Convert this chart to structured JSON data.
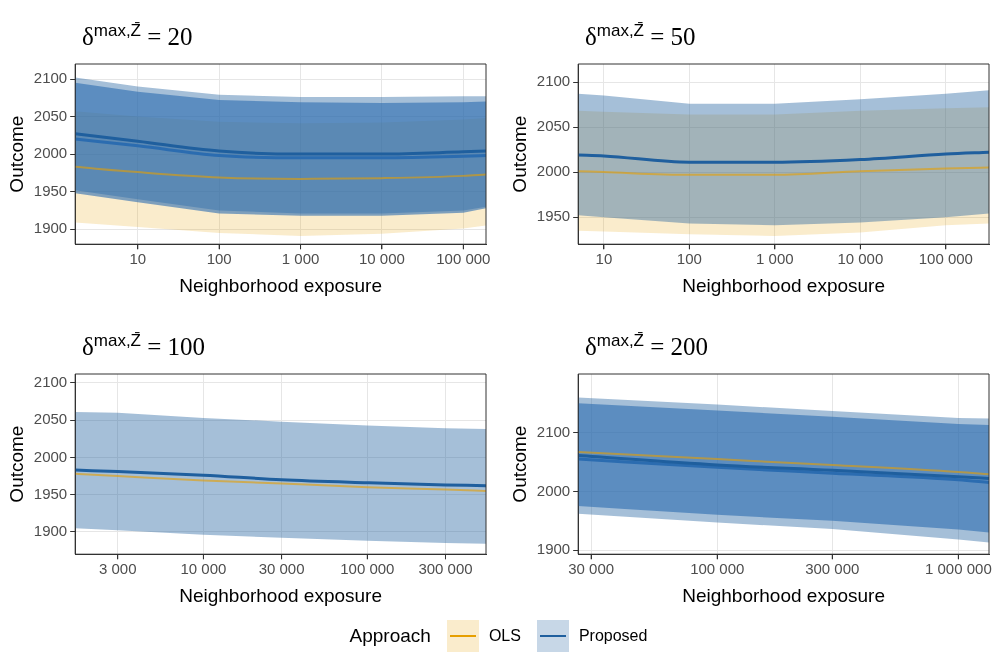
{
  "chart_data": [
    {
      "type": "line",
      "title": "δ$^{max,Z̄}$ = 20",
      "xlabel": "Neighborhood exposure",
      "ylabel": "Outcome",
      "log": "x",
      "grid": true,
      "legend": "bottom",
      "legend_title": "Approach",
      "xlim": [
        1.7,
        190000
      ],
      "xticks": [
        {
          "value": 10,
          "label": "10"
        },
        {
          "value": 100,
          "label": "100"
        },
        {
          "value": 1000,
          "label": "1 000"
        },
        {
          "value": 10000,
          "label": "10 000"
        },
        {
          "value": 100000,
          "label": "100 000"
        }
      ],
      "ylim": [
        1880,
        2120
      ],
      "yticks": [
        1900,
        1950,
        2000,
        2050,
        2100
      ],
      "x": [
        1.7,
        10,
        100,
        1000,
        10000,
        100000,
        190000
      ],
      "series": [
        {
          "name": "OLS",
          "color": "#e69f00",
          "values": [
            1983,
            1976,
            1969,
            1967,
            1968,
            1971,
            1973
          ],
          "lower": [
            1909,
            1903,
            1895,
            1891,
            1894,
            1901,
            1905
          ],
          "upper": [
            2057,
            2050,
            2043,
            2041,
            2042,
            2046,
            2048
          ]
        },
        {
          "name": "Proposed",
          "color": "#1f5f9e",
          "values": [
            2027,
            2017,
            2004,
            2000,
            2000,
            2003,
            2004
          ],
          "lower": [
            1952,
            1940,
            1925,
            1921,
            1921,
            1925,
            1930
          ],
          "upper": [
            2102,
            2090,
            2079,
            2076,
            2076,
            2077,
            2077
          ]
        },
        {
          "color": "#2b6cb0",
          "values": [
            2020,
            2011,
            1998,
            1995,
            1995,
            1997,
            1998
          ],
          "lower": [
            1948,
            1936,
            1921,
            1918,
            1918,
            1922,
            1928
          ],
          "upper": [
            2095,
            2083,
            2072,
            2069,
            2068,
            2069,
            2070
          ]
        }
      ]
    },
    {
      "type": "line",
      "title": "δ$^{max,Z̄}$ = 50",
      "xlabel": "Neighborhood exposure",
      "ylabel": "Outcome",
      "log": "x",
      "grid": true,
      "xlim": [
        5,
        320000
      ],
      "xticks": [
        {
          "value": 10,
          "label": "10"
        },
        {
          "value": 100,
          "label": "100"
        },
        {
          "value": 1000,
          "label": "1 000"
        },
        {
          "value": 10000,
          "label": "10 000"
        },
        {
          "value": 100000,
          "label": "100 000"
        }
      ],
      "ylim": [
        1920,
        2120
      ],
      "yticks": [
        1950,
        2000,
        2050,
        2100
      ],
      "x": [
        5,
        10,
        100,
        1000,
        10000,
        100000,
        320000
      ],
      "series": [
        {
          "name": "OLS",
          "color": "#e69f00",
          "values": [
            2001,
            2000,
            1997,
            1997,
            2001,
            2004,
            2005
          ],
          "lower": [
            1935,
            1934,
            1931,
            1929,
            1933,
            1941,
            1943
          ],
          "upper": [
            2068,
            2067,
            2064,
            2064,
            2068,
            2071,
            2072
          ]
        },
        {
          "name": "Proposed",
          "color": "#1f5f9e",
          "values": [
            2019,
            2018,
            2011,
            2011,
            2014,
            2020,
            2022
          ],
          "lower": [
            1952,
            1950,
            1943,
            1941,
            1944,
            1950,
            1954
          ],
          "upper": [
            2087,
            2085,
            2076,
            2076,
            2081,
            2087,
            2091
          ]
        }
      ]
    },
    {
      "type": "line",
      "title": "δ$^{max,Z̄}$ = 100",
      "xlabel": "Neighborhood exposure",
      "ylabel": "Outcome",
      "log": "x",
      "grid": true,
      "xlim": [
        1650,
        530000
      ],
      "xticks": [
        {
          "value": 3000,
          "label": "3 000"
        },
        {
          "value": 10000,
          "label": "10 000"
        },
        {
          "value": 30000,
          "label": "30 000"
        },
        {
          "value": 100000,
          "label": "100 000"
        },
        {
          "value": 300000,
          "label": "300 000"
        }
      ],
      "ylim": [
        1870,
        2112
      ],
      "yticks": [
        1900,
        1950,
        2000,
        2050,
        2100
      ],
      "x": [
        1650,
        3000,
        10000,
        30000,
        100000,
        300000,
        530000
      ],
      "series": [
        {
          "name": "OLS",
          "color": "#e69f00",
          "values": [
            1978,
            1975,
            1969,
            1965,
            1960,
            1957,
            1955
          ]
        },
        {
          "name": "Proposed",
          "color": "#1f5f9e",
          "values": [
            1983,
            1981,
            1976,
            1970,
            1966,
            1963,
            1962
          ],
          "lower": [
            1905,
            1902,
            1896,
            1892,
            1888,
            1885,
            1884
          ],
          "upper": [
            2061,
            2060,
            2053,
            2048,
            2043,
            2039,
            2038
          ]
        }
      ]
    },
    {
      "type": "line",
      "title": "δ$^{max,Z̄}$ = 200",
      "xlabel": "Neighborhood exposure",
      "ylabel": "Outcome",
      "log": "x",
      "grid": true,
      "xlim": [
        26500,
        1340000
      ],
      "xticks": [
        {
          "value": 30000,
          "label": "30 000"
        },
        {
          "value": 100000,
          "label": "100 000"
        },
        {
          "value": 300000,
          "label": "300 000"
        },
        {
          "value": 1000000,
          "label": "1 000 000"
        }
      ],
      "ylim": [
        1893,
        2200
      ],
      "yticks": [
        1900,
        2000,
        2100
      ],
      "x": [
        26500,
        100000,
        300000,
        1000000,
        1340000
      ],
      "series": [
        {
          "name": "OLS",
          "color": "#e69f00",
          "values": [
            2067,
            2055,
            2045,
            2033,
            2029
          ]
        },
        {
          "name": "Proposed",
          "color": "#1f5f9e",
          "values": [
            2061,
            2045,
            2036,
            2025,
            2022
          ],
          "lower": [
            1962,
            1947,
            1936,
            1918,
            1913
          ],
          "upper": [
            2160,
            2148,
            2137,
            2125,
            2124
          ]
        },
        {
          "color": "#2b6cb0",
          "values": [
            2055,
            2041,
            2031,
            2020,
            2015
          ],
          "lower": [
            1975,
            1960,
            1950,
            1935,
            1930
          ],
          "upper": [
            2150,
            2138,
            2127,
            2115,
            2113
          ]
        }
      ]
    }
  ]
}
